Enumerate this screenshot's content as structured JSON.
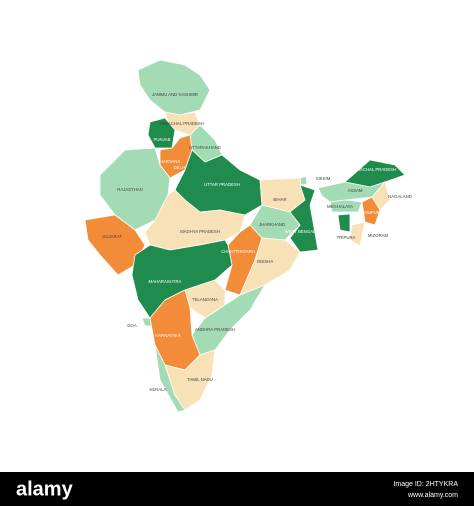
{
  "map": {
    "regions": [
      {
        "label": "JAMMU AND KASHMIR"
      },
      {
        "label": "HIMACHAL PRADESH"
      },
      {
        "label": "PUNJAB"
      },
      {
        "label": "UTTARAKHAND"
      },
      {
        "label": "HARYANA"
      },
      {
        "label": "DELHI"
      },
      {
        "label": "RAJASTHAN"
      },
      {
        "label": "UTTAR PRADESH"
      },
      {
        "label": "SIKKIM"
      },
      {
        "label": "ARUNACHAL PRADESH"
      },
      {
        "label": "ASSAM"
      },
      {
        "label": "NAGALAND"
      },
      {
        "label": "MEGHALAYA"
      },
      {
        "label": "MANIPUR"
      },
      {
        "label": "TRIPURA"
      },
      {
        "label": "MIZORAM"
      },
      {
        "label": "BIHAR"
      },
      {
        "label": "JHARKHAND"
      },
      {
        "label": "WEST BENGAL"
      },
      {
        "label": "GUJARAT"
      },
      {
        "label": "MADHYA PRADESH"
      },
      {
        "label": "CHHATTISGARH"
      },
      {
        "label": "ODISHA"
      },
      {
        "label": "MAHARASHTRA"
      },
      {
        "label": "TELANGANA"
      },
      {
        "label": "ANDHRA PRADESH"
      },
      {
        "label": "GOA"
      },
      {
        "label": "KARNATAKA"
      },
      {
        "label": "TAMIL NADU"
      },
      {
        "label": "KERALA"
      }
    ]
  },
  "footer": {
    "logo": "alamy",
    "image_id": "Image ID: 2HTYKRA",
    "url": "www.alamy.com"
  }
}
